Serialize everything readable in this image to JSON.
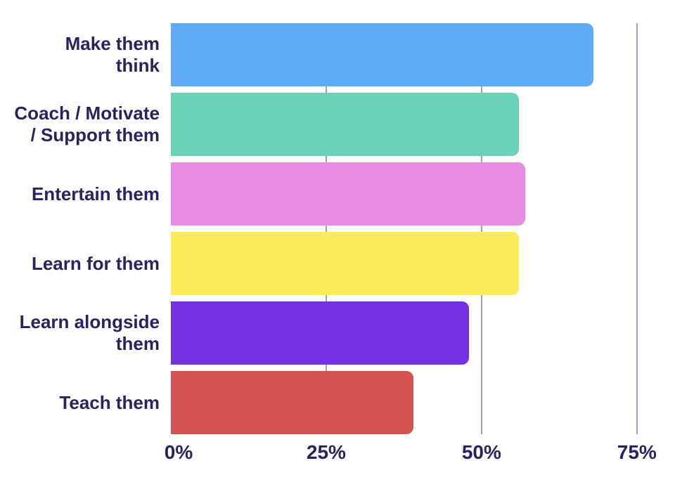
{
  "chart_data": {
    "type": "bar",
    "orientation": "horizontal",
    "title": "",
    "xlabel": "",
    "ylabel": "",
    "categories": [
      "Make them\nthink",
      "Coach / Motivate\n/ Support them",
      "Entertain them",
      "Learn for them",
      "Learn alongside\nthem",
      "Teach them"
    ],
    "values": [
      68,
      56,
      57,
      56,
      48,
      39
    ],
    "unit": "%",
    "bar_colors": [
      "#5facf5",
      "#6bd2b8",
      "#e98ce4",
      "#faeb58",
      "#7430e3",
      "#d25350"
    ],
    "x_ticks": [
      {
        "label": "0%",
        "value": 0
      },
      {
        "label": "25%",
        "value": 25
      },
      {
        "label": "50%",
        "value": 50
      },
      {
        "label": "75%",
        "value": 75
      }
    ],
    "xlim": [
      0,
      80
    ],
    "grid": "vertical",
    "gridline_ticks": [
      25,
      50,
      75
    ],
    "legend": "none",
    "colors": {
      "text": "#2a2161",
      "gridline": "#a19bc9",
      "background": "#ffffff"
    }
  }
}
